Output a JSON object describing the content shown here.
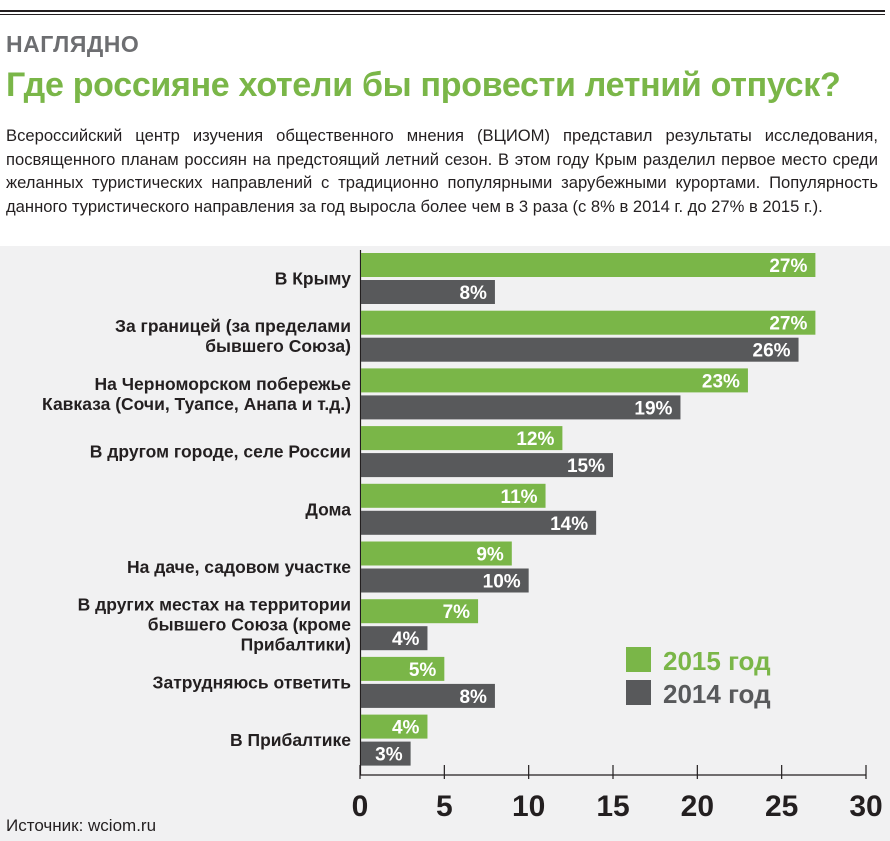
{
  "header": {
    "rubric": "НАГЛЯДНО",
    "title": "Где россияне хотели бы провести летний отпуск?",
    "lead": "Всероссийский центр изучения общественного мнения (ВЦИОМ) представил результаты исследования, посвященного планам россиян на предстоящий летний сезон. В этом году Крым разделил первое место среди желанных туристических направлений с традиционно популярными зарубежными курортами. Популярность данного туристического направления за год выросла более чем в 3 раза (с 8% в 2014 г. до 27% в 2015 г.)."
  },
  "footer": {
    "source": "Источник: wciom.ru"
  },
  "colors": {
    "accent": "#7ab648",
    "series2014": "#58595b",
    "background": "#f1f1f2",
    "text": "#231f20"
  },
  "chart_data": {
    "type": "bar",
    "orientation": "horizontal",
    "title": "Где россияне хотели бы провести летний отпуск?",
    "xlabel": "",
    "ylabel": "",
    "xlim": [
      0,
      30
    ],
    "xticks": [
      0,
      5,
      10,
      15,
      20,
      25,
      30
    ],
    "unit": "%",
    "legend_position": "bottom-right",
    "categories": [
      [
        "В Крыму"
      ],
      [
        "За границей (за пределами",
        "бывшего Союза)"
      ],
      [
        "На Черноморском побережье",
        "Кавказа (Сочи, Туапсе, Анапа и т.д.)"
      ],
      [
        "В другом городе, селе России"
      ],
      [
        "Дома"
      ],
      [
        "На даче, садовом участке"
      ],
      [
        "В других местах на территории",
        "бывшего Союза (кроме",
        "Прибалтики)"
      ],
      [
        "Затрудняюсь ответить"
      ],
      [
        "В Прибалтике"
      ]
    ],
    "series": [
      {
        "name": "2015 год",
        "color": "#7ab648",
        "values": [
          27,
          27,
          23,
          12,
          11,
          9,
          7,
          5,
          4
        ]
      },
      {
        "name": "2014 год",
        "color": "#58595b",
        "values": [
          8,
          26,
          19,
          15,
          14,
          10,
          4,
          8,
          3
        ]
      }
    ]
  }
}
